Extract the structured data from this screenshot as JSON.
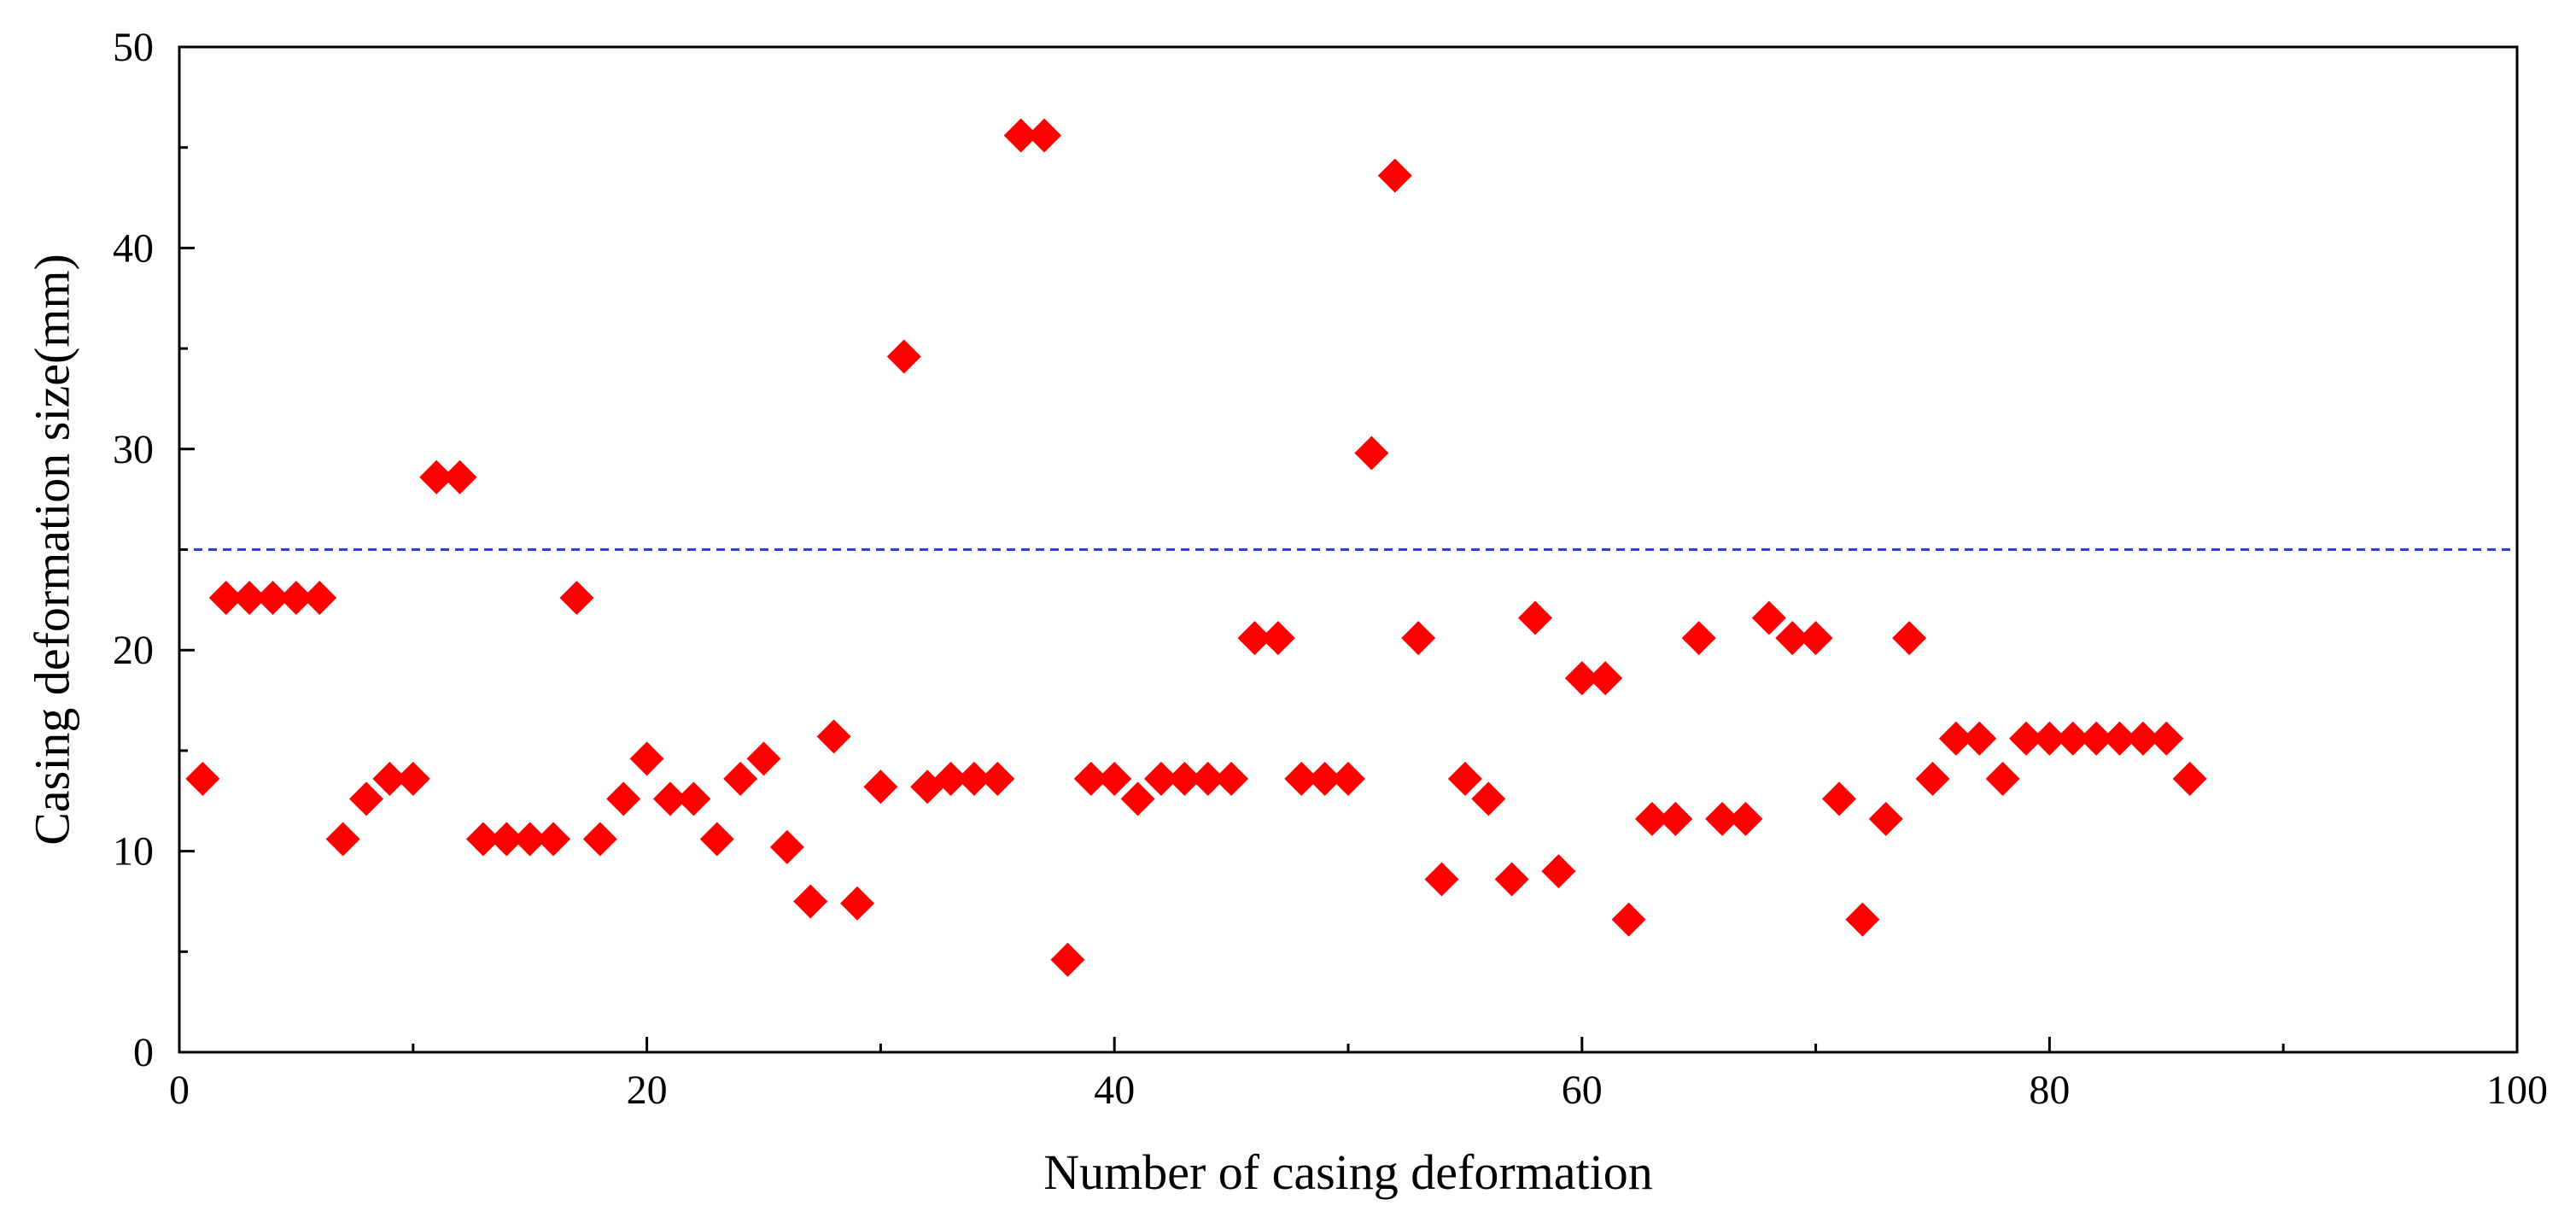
{
  "chart_data": {
    "type": "scatter",
    "title": "",
    "xlabel": "Number of casing deformation",
    "ylabel": "Casing deformation size(mm)",
    "xlim": [
      0,
      100
    ],
    "ylim": [
      0,
      50
    ],
    "xticks": [
      0,
      20,
      40,
      60,
      80,
      100
    ],
    "yticks": [
      0,
      10,
      20,
      30,
      40,
      50
    ],
    "x_tick_labels": [
      "0",
      "20",
      "40",
      "60",
      "80",
      "100"
    ],
    "y_tick_labels": [
      "0",
      "10",
      "20",
      "30",
      "40",
      "50"
    ],
    "grid": false,
    "legend": null,
    "marker": "diamond",
    "marker_color": "#ff0000",
    "reference_line": {
      "orientation": "horizontal",
      "y": 25,
      "style": "dashed",
      "color": "#2f3fd6"
    },
    "series": [
      {
        "name": "Casing deformation",
        "x": [
          1,
          2,
          3,
          4,
          5,
          6,
          7,
          8,
          9,
          10,
          11,
          12,
          13,
          14,
          15,
          16,
          17,
          18,
          19,
          20,
          21,
          22,
          23,
          24,
          25,
          26,
          27,
          28,
          29,
          30,
          31,
          32,
          33,
          34,
          35,
          36,
          37,
          38,
          39,
          40,
          41,
          42,
          43,
          44,
          45,
          46,
          47,
          48,
          49,
          50,
          51,
          52,
          53,
          54,
          55,
          56,
          57,
          58,
          59,
          60,
          61,
          62,
          63,
          64,
          65,
          66,
          67,
          68,
          69,
          70,
          71,
          72,
          73,
          74,
          75,
          76,
          77,
          78,
          79,
          80,
          81,
          82,
          83,
          84,
          85,
          86
        ],
        "y": [
          13.6,
          22.6,
          22.6,
          22.6,
          22.6,
          22.6,
          10.6,
          12.6,
          13.6,
          13.6,
          28.6,
          28.6,
          10.6,
          10.6,
          10.6,
          10.6,
          22.6,
          10.6,
          12.6,
          14.6,
          12.6,
          12.6,
          10.6,
          13.6,
          14.6,
          10.2,
          7.5,
          15.7,
          7.4,
          13.2,
          34.6,
          13.2,
          13.6,
          13.6,
          13.6,
          45.6,
          45.6,
          4.6,
          13.6,
          13.6,
          12.6,
          13.6,
          13.6,
          13.6,
          13.6,
          20.6,
          20.6,
          13.6,
          13.6,
          13.6,
          29.8,
          43.6,
          20.6,
          8.6,
          13.6,
          12.6,
          8.6,
          21.6,
          9.0,
          18.6,
          18.6,
          6.6,
          11.6,
          11.6,
          20.6,
          11.6,
          11.6,
          21.6,
          20.6,
          20.6,
          12.6,
          6.6,
          11.6,
          20.6,
          13.6,
          15.6,
          15.6,
          13.6,
          15.6,
          15.6,
          15.6,
          15.6,
          15.6,
          15.6,
          15.6,
          13.6
        ]
      }
    ]
  }
}
